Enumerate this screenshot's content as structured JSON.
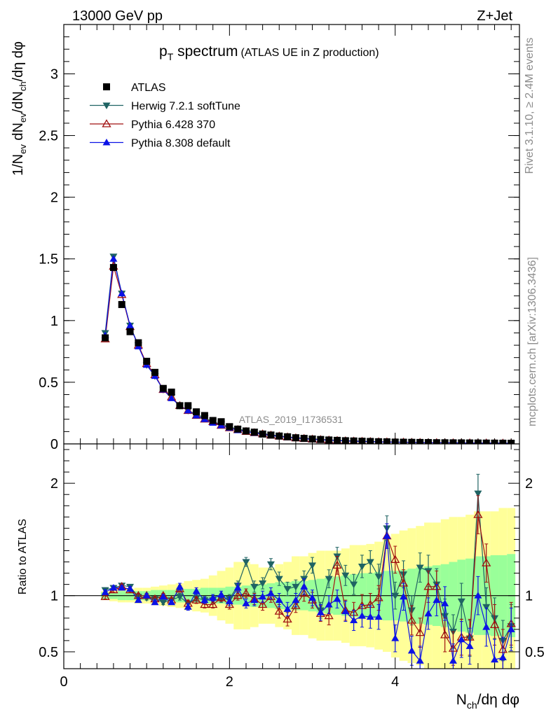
{
  "header": {
    "left": "13000 GeV pp",
    "right": "Z+Jet"
  },
  "title": {
    "main": "p",
    "main_sub": "T",
    "main_rest": " spectrum",
    "paren": "(ATLAS UE in Z production)"
  },
  "side_text": {
    "top": "Rivet 3.1.10, ≥ 2.4M events",
    "bottom": "mcplots.cern.ch [arXiv:1306.3436]"
  },
  "watermark": "ATLAS_2019_I1736531",
  "colors": {
    "data": "#000000",
    "herwig": "#1f6363",
    "pythia6": "#a01010",
    "pythia8": "#0b12e6",
    "band_inner": "#99ff99",
    "band_outer": "#ffff99"
  },
  "chart_data": [
    {
      "type": "scatter",
      "panel": "main",
      "ylabel": {
        "a": "1/N",
        "a_sub": "ev",
        "b": " dN",
        "b_sub": "ev",
        "c": "/dN",
        "c_sub": "ch",
        "d": "/dη dφ"
      },
      "xlim": [
        0,
        5.5
      ],
      "ylim": [
        0,
        3.4
      ],
      "yticks": [
        {
          "v": 0,
          "l": "0"
        },
        {
          "v": 0.5,
          "l": "0.5"
        },
        {
          "v": 1,
          "l": "1"
        },
        {
          "v": 1.5,
          "l": "1.5"
        },
        {
          "v": 2,
          "l": "2"
        },
        {
          "v": 2.5,
          "l": "2.5"
        },
        {
          "v": 3,
          "l": "3"
        }
      ],
      "legend": {
        "position": "top-left",
        "entries": [
          {
            "key": "data",
            "label": "ATLAS"
          },
          {
            "key": "herwig",
            "label": "Herwig 7.2.1 softTune"
          },
          {
            "key": "pythia6",
            "label": "Pythia 6.428 370"
          },
          {
            "key": "pythia8",
            "label": "Pythia 8.308 default"
          }
        ]
      },
      "x": [
        0.5,
        0.6,
        0.7,
        0.8,
        0.9,
        1.0,
        1.1,
        1.2,
        1.3,
        1.4,
        1.5,
        1.6,
        1.7,
        1.8,
        1.9,
        2.0,
        2.1,
        2.2,
        2.3,
        2.4,
        2.5,
        2.6,
        2.7,
        2.8,
        2.9,
        3.0,
        3.1,
        3.2,
        3.3,
        3.4,
        3.5,
        3.6,
        3.7,
        3.8,
        3.9,
        4.0,
        4.1,
        4.2,
        4.3,
        4.4,
        4.5,
        4.6,
        4.7,
        4.8,
        4.9,
        5.0,
        5.1,
        5.2,
        5.3,
        5.4
      ],
      "series": [
        {
          "key": "data",
          "name": "ATLAS",
          "marker": "square",
          "values": [
            0.86,
            1.43,
            1.13,
            0.91,
            0.82,
            0.67,
            0.58,
            0.45,
            0.42,
            0.31,
            0.31,
            0.26,
            0.23,
            0.19,
            0.18,
            0.14,
            0.12,
            0.105,
            0.095,
            0.08,
            0.072,
            0.064,
            0.058,
            0.05,
            0.045,
            0.04,
            0.036,
            0.032,
            0.029,
            0.026,
            0.024,
            0.022,
            0.02,
            0.018,
            0.017,
            0.015,
            0.014,
            0.013,
            0.012,
            0.011,
            0.01,
            0.0095,
            0.009,
            0.0085,
            0.008,
            0.0075,
            0.007,
            0.0065,
            0.006,
            0.0055
          ]
        },
        {
          "key": "herwig",
          "name": "Herwig 7.2.1 softTune",
          "marker": "triangle-down",
          "values": [
            0.9,
            1.52,
            1.22,
            0.96,
            0.8,
            0.64,
            0.55,
            0.44,
            0.38,
            0.31,
            0.27,
            0.24,
            0.21,
            0.18,
            0.16,
            0.14,
            0.12,
            0.11,
            0.1,
            0.085,
            0.075,
            0.065,
            0.058,
            0.052,
            0.047,
            0.042,
            0.037,
            0.033,
            0.03,
            0.027,
            0.024,
            0.022,
            0.02,
            0.018,
            0.016,
            0.015,
            0.014,
            0.013,
            0.012,
            0.011,
            0.01,
            0.0095,
            0.009,
            0.0085,
            0.008,
            0.0075,
            0.007,
            0.0065,
            0.006,
            0.0055
          ]
        },
        {
          "key": "pythia6",
          "name": "Pythia 6.428 370",
          "marker": "triangle-up-open",
          "values": [
            0.85,
            1.44,
            1.21,
            0.95,
            0.8,
            0.65,
            0.56,
            0.44,
            0.38,
            0.31,
            0.27,
            0.23,
            0.2,
            0.18,
            0.15,
            0.13,
            0.115,
            0.1,
            0.09,
            0.08,
            0.07,
            0.062,
            0.055,
            0.048,
            0.043,
            0.038,
            0.034,
            0.03,
            0.027,
            0.024,
            0.022,
            0.02,
            0.018,
            0.016,
            0.015,
            0.014,
            0.013,
            0.012,
            0.011,
            0.01,
            0.0095,
            0.009,
            0.0085,
            0.008,
            0.0075,
            0.007,
            0.0065,
            0.006,
            0.0055,
            0.005
          ]
        },
        {
          "key": "pythia8",
          "name": "Pythia 8.308 default",
          "marker": "triangle-up",
          "values": [
            0.88,
            1.5,
            1.22,
            0.96,
            0.79,
            0.64,
            0.55,
            0.44,
            0.37,
            0.31,
            0.27,
            0.23,
            0.2,
            0.17,
            0.15,
            0.13,
            0.11,
            0.1,
            0.088,
            0.077,
            0.068,
            0.06,
            0.053,
            0.047,
            0.042,
            0.037,
            0.033,
            0.03,
            0.027,
            0.024,
            0.022,
            0.02,
            0.018,
            0.016,
            0.015,
            0.014,
            0.013,
            0.012,
            0.011,
            0.01,
            0.0095,
            0.009,
            0.0085,
            0.008,
            0.0075,
            0.007,
            0.0065,
            0.006,
            0.0055,
            0.005
          ]
        }
      ]
    },
    {
      "type": "scatter",
      "panel": "ratio",
      "ylabel": "Ratio to ATLAS",
      "xlabel": {
        "a": "N",
        "a_sub": "ch",
        "b": "/dη dφ"
      },
      "xlim": [
        0,
        5.5
      ],
      "ylim": [
        0.35,
        2.35
      ],
      "reference": 1,
      "xticks": [
        {
          "v": 0,
          "l": "0"
        },
        {
          "v": 2,
          "l": "2"
        },
        {
          "v": 4,
          "l": "4"
        }
      ],
      "yticks": [
        {
          "v": 0.5,
          "l": "0.5"
        },
        {
          "v": 1,
          "l": "1"
        },
        {
          "v": 2,
          "l": "2"
        }
      ],
      "bin_width": 0.1,
      "x": [
        0.5,
        0.6,
        0.7,
        0.8,
        0.9,
        1.0,
        1.1,
        1.2,
        1.3,
        1.4,
        1.5,
        1.6,
        1.7,
        1.8,
        1.9,
        2.0,
        2.1,
        2.2,
        2.3,
        2.4,
        2.5,
        2.6,
        2.7,
        2.8,
        2.9,
        3.0,
        3.1,
        3.2,
        3.3,
        3.4,
        3.5,
        3.6,
        3.7,
        3.8,
        3.9,
        4.0,
        4.1,
        4.2,
        4.3,
        4.4,
        4.5,
        4.6,
        4.7,
        4.8,
        4.9,
        5.0,
        5.1,
        5.2,
        5.3,
        5.4
      ],
      "band_inner": [
        0.03,
        0.03,
        0.04,
        0.04,
        0.04,
        0.04,
        0.05,
        0.05,
        0.05,
        0.06,
        0.06,
        0.06,
        0.07,
        0.07,
        0.07,
        0.08,
        0.08,
        0.09,
        0.1,
        0.1,
        0.11,
        0.12,
        0.12,
        0.13,
        0.13,
        0.14,
        0.15,
        0.16,
        0.17,
        0.18,
        0.19,
        0.2,
        0.2,
        0.21,
        0.22,
        0.22,
        0.23,
        0.24,
        0.25,
        0.26,
        0.27,
        0.28,
        0.3,
        0.32,
        0.33,
        0.35,
        0.35,
        0.36,
        0.36,
        0.37
      ],
      "band_outer": [
        0.04,
        0.05,
        0.06,
        0.06,
        0.07,
        0.07,
        0.08,
        0.09,
        0.1,
        0.11,
        0.13,
        0.14,
        0.15,
        0.18,
        0.22,
        0.25,
        0.3,
        0.3,
        0.28,
        0.25,
        0.25,
        0.28,
        0.3,
        0.35,
        0.35,
        0.38,
        0.4,
        0.4,
        0.4,
        0.42,
        0.45,
        0.45,
        0.46,
        0.48,
        0.5,
        0.55,
        0.58,
        0.6,
        0.62,
        0.65,
        0.65,
        0.68,
        0.7,
        0.7,
        0.72,
        0.75,
        0.75,
        0.75,
        0.78,
        0.78
      ],
      "series": [
        {
          "key": "herwig",
          "marker": "triangle-down",
          "values": [
            1.05,
            1.07,
            1.09,
            1.08,
            0.99,
            0.98,
            0.97,
            0.94,
            0.96,
            0.99,
            0.93,
            0.98,
            0.96,
            0.96,
            0.97,
            0.97,
            1.09,
            1.3,
            1.08,
            1.11,
            1.28,
            1.15,
            1.06,
            1.08,
            1.15,
            1.27,
            0.87,
            1.15,
            1.35,
            1.18,
            1.1,
            1.26,
            1.3,
            1.17,
            1.6,
            1.0,
            1.19,
            0.87,
            1.25,
            1.22,
            1.1,
            0.82,
            0.68,
            0.95,
            0.62,
            1.91,
            0.9,
            0.8,
            0.6,
            0.73
          ],
          "errors": [
            0.02,
            0.02,
            0.02,
            0.02,
            0.02,
            0.02,
            0.02,
            0.02,
            0.02,
            0.03,
            0.03,
            0.03,
            0.03,
            0.03,
            0.03,
            0.04,
            0.04,
            0.04,
            0.05,
            0.05,
            0.05,
            0.06,
            0.06,
            0.06,
            0.07,
            0.07,
            0.07,
            0.08,
            0.08,
            0.09,
            0.09,
            0.1,
            0.1,
            0.11,
            0.11,
            0.12,
            0.12,
            0.13,
            0.13,
            0.14,
            0.14,
            0.15,
            0.15,
            0.16,
            0.16,
            0.17,
            0.17,
            0.18,
            0.18,
            0.19
          ]
        },
        {
          "key": "pythia6",
          "marker": "triangle-up-open",
          "values": [
            0.99,
            1.05,
            1.08,
            1.05,
            1.0,
            1.0,
            0.97,
            1.0,
            0.96,
            1.06,
            0.93,
            0.96,
            0.92,
            0.92,
            0.98,
            0.92,
            1.0,
            1.02,
            0.97,
            0.92,
            0.99,
            0.86,
            0.79,
            0.91,
            1.02,
            0.96,
            0.84,
            0.82,
            1.27,
            0.87,
            0.85,
            0.91,
            0.92,
            0.98,
            1.53,
            1.32,
            1.11,
            0.78,
            0.67,
            1.08,
            1.08,
            0.65,
            0.53,
            0.63,
            0.63,
            1.72,
            1.29,
            0.74,
            0.52,
            0.75
          ],
          "errors": [
            0.02,
            0.02,
            0.02,
            0.02,
            0.02,
            0.02,
            0.02,
            0.02,
            0.02,
            0.03,
            0.03,
            0.03,
            0.03,
            0.03,
            0.03,
            0.04,
            0.04,
            0.04,
            0.05,
            0.05,
            0.05,
            0.06,
            0.06,
            0.06,
            0.07,
            0.07,
            0.07,
            0.08,
            0.08,
            0.09,
            0.09,
            0.1,
            0.1,
            0.11,
            0.11,
            0.12,
            0.12,
            0.13,
            0.13,
            0.14,
            0.14,
            0.15,
            0.15,
            0.16,
            0.16,
            0.17,
            0.17,
            0.18,
            0.18,
            0.19
          ]
        },
        {
          "key": "pythia8",
          "marker": "triangle-up",
          "values": [
            1.03,
            1.07,
            1.07,
            1.06,
            0.96,
            1.0,
            0.94,
            0.99,
            0.94,
            1.08,
            0.9,
            1.04,
            0.96,
            0.98,
            1.01,
            0.95,
            1.07,
            0.93,
            0.96,
            0.99,
            1.02,
            0.96,
            0.88,
            0.96,
            1.08,
            0.98,
            0.85,
            0.92,
            0.97,
            0.86,
            0.78,
            0.82,
            0.81,
            0.81,
            1.53,
            0.62,
            0.99,
            0.51,
            0.42,
            0.84,
            0.96,
            0.93,
            0.42,
            0.61,
            0.55,
            1.0,
            0.72,
            0.43,
            0.45,
            0.7
          ],
          "errors": [
            0.02,
            0.02,
            0.02,
            0.02,
            0.02,
            0.02,
            0.02,
            0.02,
            0.02,
            0.03,
            0.03,
            0.03,
            0.03,
            0.03,
            0.03,
            0.04,
            0.04,
            0.04,
            0.05,
            0.05,
            0.05,
            0.06,
            0.06,
            0.06,
            0.07,
            0.07,
            0.07,
            0.08,
            0.08,
            0.09,
            0.09,
            0.1,
            0.1,
            0.11,
            0.11,
            0.12,
            0.12,
            0.13,
            0.13,
            0.14,
            0.14,
            0.15,
            0.15,
            0.16,
            0.16,
            0.17,
            0.17,
            0.18,
            0.18,
            0.19
          ]
        }
      ]
    }
  ]
}
